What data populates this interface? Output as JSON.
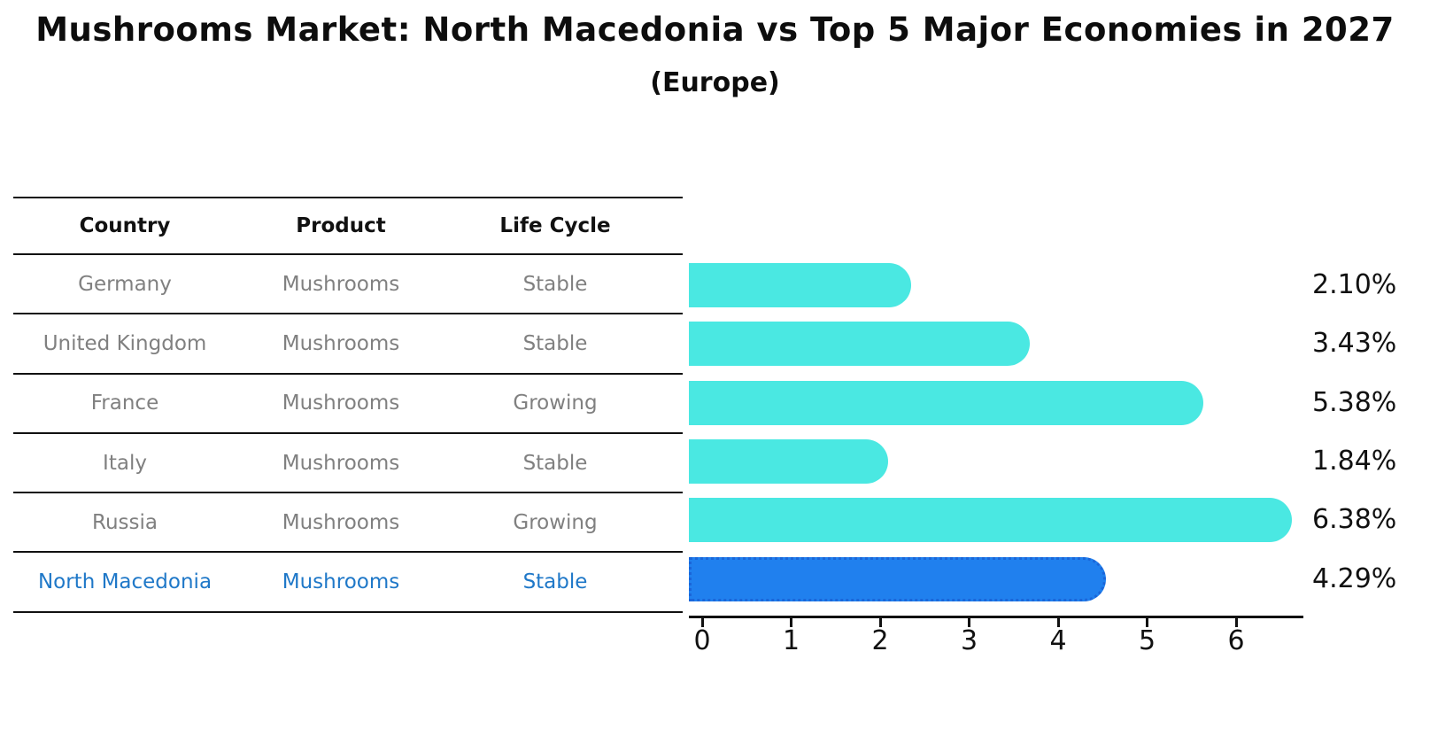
{
  "title": "Mushrooms Market: North Macedonia vs Top 5 Major Economies in 2027",
  "subtitle": "(Europe)",
  "colors": {
    "bar": "#4AE8E2",
    "highlight_bar": "#2080EE",
    "highlight_border": "#1A66D9",
    "highlight_text": "#1F78C8",
    "row_text": "#808080",
    "axis_text": "#111111"
  },
  "table": {
    "headers": [
      "Country",
      "Product",
      "Life Cycle"
    ],
    "rows": [
      {
        "country": "Germany",
        "product": "Mushrooms",
        "life_cycle": "Stable",
        "highlight": false
      },
      {
        "country": "United Kingdom",
        "product": "Mushrooms",
        "life_cycle": "Stable",
        "highlight": false
      },
      {
        "country": "France",
        "product": "Mushrooms",
        "life_cycle": "Growing",
        "highlight": false
      },
      {
        "country": "Italy",
        "product": "Mushrooms",
        "life_cycle": "Stable",
        "highlight": false
      },
      {
        "country": "Russia",
        "product": "Mushrooms",
        "life_cycle": "Growing",
        "highlight": false
      },
      {
        "country": "North Macedonia",
        "product": "Mushrooms",
        "life_cycle": "Stable",
        "highlight": true
      }
    ]
  },
  "chart_data": {
    "type": "bar",
    "orientation": "horizontal",
    "title": "Mushrooms Market: North Macedonia vs Top 5 Major Economies in 2027 (Europe)",
    "categories": [
      "Germany",
      "United Kingdom",
      "France",
      "Italy",
      "Russia",
      "North Macedonia"
    ],
    "values": [
      2.1,
      3.43,
      5.38,
      1.84,
      6.38,
      4.29
    ],
    "value_labels": [
      "2.10%",
      "3.43%",
      "5.38%",
      "1.84%",
      "6.38%",
      "4.29%"
    ],
    "highlight_index": 5,
    "x_ticks": [
      "0",
      "1",
      "2",
      "3",
      "4",
      "5",
      "6"
    ],
    "xlim": [
      0,
      6.9
    ],
    "xlabel": "",
    "ylabel": "",
    "grid": false,
    "legend": false
  }
}
